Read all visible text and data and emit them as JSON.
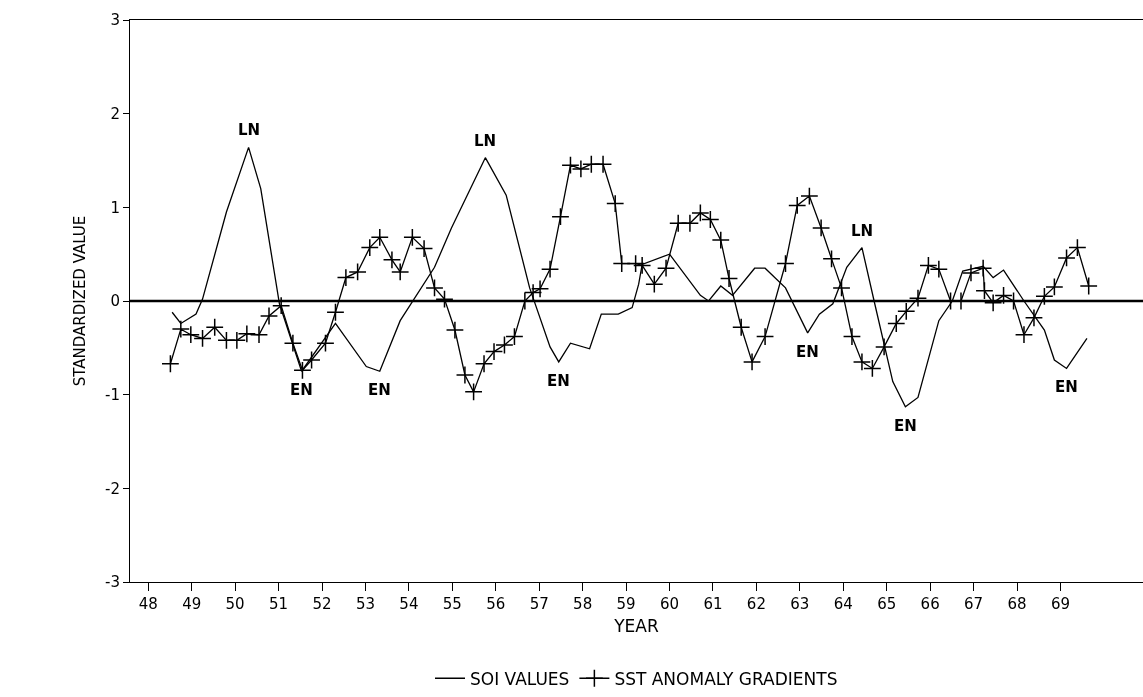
{
  "chart_data": {
    "type": "line",
    "xlabel": "YEAR",
    "ylabel": "STANDARDIZED VALUE",
    "xlim": [
      47.58,
      70.9
    ],
    "ylim": [
      -3,
      3
    ],
    "yticks": [
      -3,
      -2,
      -1,
      0,
      1,
      2,
      3
    ],
    "xticks": [
      48,
      49,
      50,
      51,
      52,
      53,
      54,
      55,
      56,
      57,
      58,
      59,
      60,
      61,
      62,
      63,
      64,
      65,
      66,
      67,
      68,
      69
    ],
    "legend": "bottom",
    "line_style": "solid",
    "ref_lines": [
      {
        "axis": "y",
        "value": 0,
        "color": "#000000"
      }
    ],
    "series": [
      {
        "name": "SOI VALUES",
        "color": "#000000",
        "marker": "none",
        "x": [
          48.55,
          48.75,
          49.1,
          49.25,
          49.8,
          50.31,
          50.59,
          51.02,
          51.53,
          52.31,
          53.02,
          53.33,
          53.8,
          54.59,
          54.98,
          55.76,
          56.24,
          56.78,
          57.25,
          57.45,
          57.72,
          58.16,
          58.43,
          58.82,
          59.14,
          59.29,
          59.37,
          60.0,
          60.71,
          60.9,
          61.18,
          61.45,
          61.96,
          62.2,
          62.67,
          63.18,
          63.45,
          63.76,
          64.08,
          64.43,
          64.71,
          65.14,
          65.43,
          65.72,
          66.2,
          66.51,
          66.75,
          67.22,
          67.45,
          67.69,
          68.16,
          68.63,
          68.86,
          69.14,
          69.61
        ],
        "values": [
          -0.12,
          -0.24,
          -0.14,
          0.02,
          0.95,
          1.64,
          1.2,
          -0.03,
          -0.75,
          -0.24,
          -0.7,
          -0.75,
          -0.21,
          0.36,
          0.78,
          1.53,
          1.13,
          0.14,
          -0.49,
          -0.65,
          -0.45,
          -0.51,
          -0.14,
          -0.14,
          -0.07,
          0.18,
          0.39,
          0.5,
          0.06,
          0.0,
          0.16,
          0.06,
          0.35,
          0.35,
          0.14,
          -0.34,
          -0.14,
          -0.03,
          0.36,
          0.57,
          0.0,
          -0.86,
          -1.13,
          -1.03,
          -0.21,
          0.0,
          0.32,
          0.37,
          0.25,
          0.33,
          0.0,
          -0.31,
          -0.63,
          -0.72,
          -0.4
        ]
      },
      {
        "name": "SST ANOMALY GRADIENTS",
        "color": "#000000",
        "marker": "cross",
        "x": [
          48.51,
          48.75,
          48.98,
          49.25,
          49.53,
          49.8,
          50.04,
          50.27,
          50.55,
          50.78,
          51.06,
          51.33,
          51.55,
          51.76,
          52.08,
          52.31,
          52.55,
          52.82,
          53.1,
          53.33,
          53.61,
          53.8,
          54.08,
          54.35,
          54.59,
          54.82,
          55.06,
          55.29,
          55.49,
          55.73,
          55.96,
          56.2,
          56.43,
          56.67,
          56.86,
          57.02,
          57.25,
          57.49,
          57.72,
          57.96,
          58.2,
          58.47,
          58.75,
          58.9,
          59.22,
          59.37,
          59.65,
          59.92,
          60.2,
          60.47,
          60.71,
          60.94,
          61.18,
          61.37,
          61.65,
          61.9,
          62.2,
          62.67,
          62.94,
          63.22,
          63.49,
          63.73,
          63.96,
          64.2,
          64.43,
          64.67,
          64.94,
          65.22,
          65.45,
          65.72,
          65.96,
          66.2,
          66.47,
          66.71,
          66.94,
          67.22,
          67.25,
          67.45,
          67.69,
          67.92,
          68.16,
          68.39,
          68.63,
          68.86,
          69.14,
          69.39,
          69.65
        ],
        "values": [
          -0.67,
          -0.3,
          -0.36,
          -0.4,
          -0.28,
          -0.42,
          -0.42,
          -0.35,
          -0.36,
          -0.16,
          -0.05,
          -0.45,
          -0.74,
          -0.63,
          -0.45,
          -0.12,
          0.25,
          0.31,
          0.57,
          0.68,
          0.44,
          0.31,
          0.68,
          0.56,
          0.14,
          0.02,
          -0.31,
          -0.79,
          -0.97,
          -0.67,
          -0.54,
          -0.47,
          -0.38,
          0.0,
          0.09,
          0.13,
          0.34,
          0.9,
          1.45,
          1.41,
          1.46,
          1.46,
          1.04,
          0.4,
          0.4,
          0.38,
          0.18,
          0.35,
          0.83,
          0.83,
          0.94,
          0.87,
          0.65,
          0.24,
          -0.28,
          -0.65,
          -0.38,
          0.4,
          1.02,
          1.12,
          0.78,
          0.45,
          0.14,
          -0.38,
          -0.65,
          -0.72,
          -0.49,
          -0.24,
          -0.11,
          0.03,
          0.38,
          0.34,
          0.0,
          0.0,
          0.3,
          0.35,
          0.11,
          -0.02,
          0.06,
          0.0,
          -0.36,
          -0.18,
          0.05,
          0.15,
          0.46,
          0.57,
          0.16
        ]
      }
    ],
    "annotations": [
      {
        "text": "LN",
        "x": 50.31,
        "y": 1.64
      },
      {
        "text": "LN",
        "x": 55.76,
        "y": 1.53
      },
      {
        "text": "LN",
        "x": 64.43,
        "y": 0.57
      },
      {
        "text": "EN",
        "x": 51.53,
        "y": -0.75
      },
      {
        "text": "EN",
        "x": 53.33,
        "y": -0.75
      },
      {
        "text": "EN",
        "x": 57.45,
        "y": -0.65
      },
      {
        "text": "EN",
        "x": 63.18,
        "y": -0.34
      },
      {
        "text": "EN",
        "x": 65.43,
        "y": -1.13
      },
      {
        "text": "EN",
        "x": 69.14,
        "y": -0.72
      }
    ]
  }
}
